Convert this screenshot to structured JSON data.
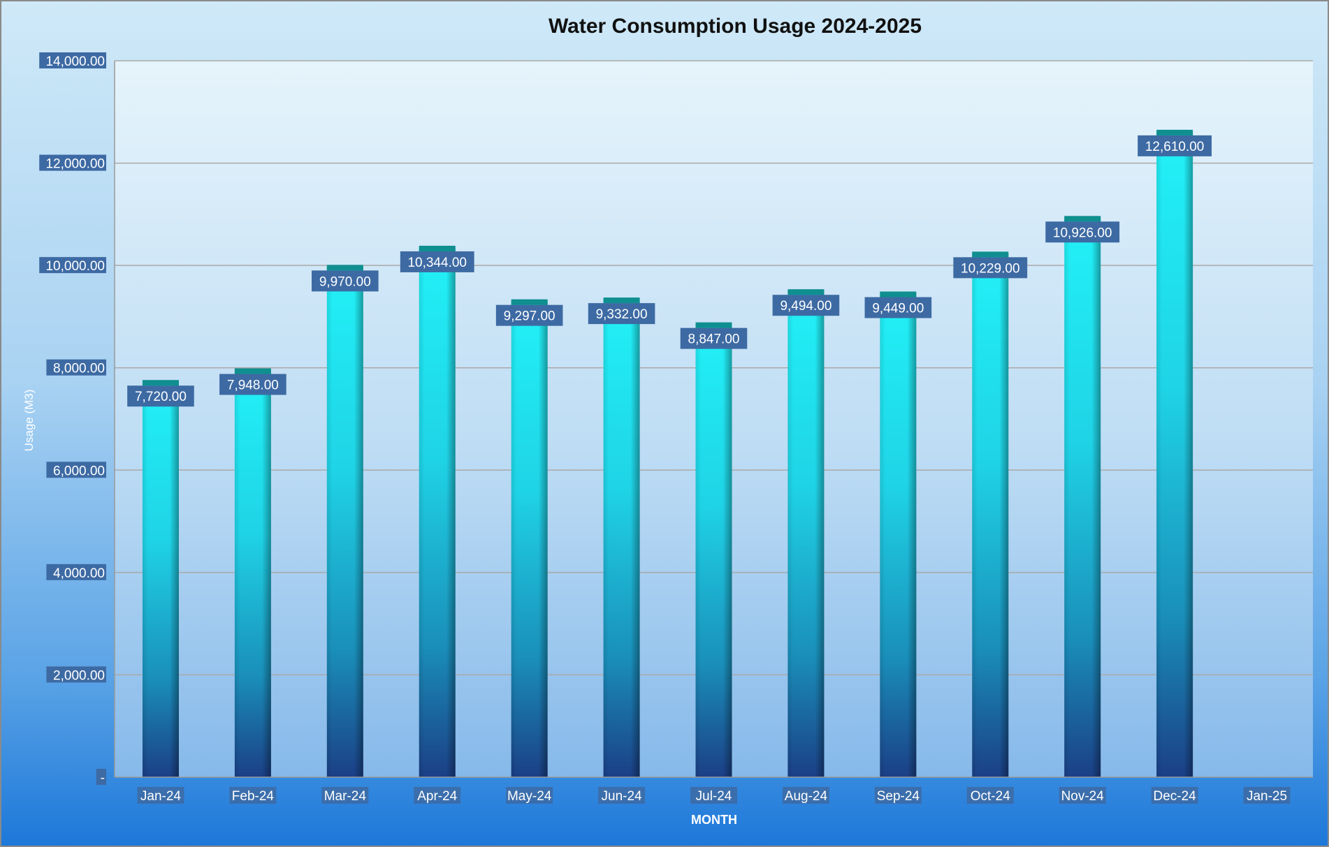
{
  "chart_data": {
    "type": "bar",
    "title": "Water Consumption Usage 2024-2025",
    "xlabel": "MONTH",
    "ylabel": "Usage (M3)",
    "categories": [
      "Jan-24",
      "Feb-24",
      "Mar-24",
      "Apr-24",
      "May-24",
      "Jun-24",
      "Jul-24",
      "Aug-24",
      "Sep-24",
      "Oct-24",
      "Nov-24",
      "Dec-24",
      "Jan-25"
    ],
    "values": [
      7720,
      7948,
      9970,
      10344,
      9297,
      9332,
      8847,
      9494,
      9449,
      10229,
      10926,
      12610,
      null
    ],
    "data_labels": [
      "7,720.00",
      "7,948.00",
      "9,970.00",
      "10,344.00",
      "9,297.00",
      "9,332.00",
      "8,847.00",
      "9,494.00",
      "9,449.00",
      "10,229.00",
      "10,926.00",
      "12,610.00",
      ""
    ],
    "ylim": [
      0,
      14000
    ],
    "y_ticks": [
      0,
      2000,
      4000,
      6000,
      8000,
      10000,
      12000,
      14000
    ],
    "y_tick_labels": [
      "-",
      "2,000.00",
      "4,000.00",
      "6,000.00",
      "8,000.00",
      "10,000.00",
      "12,000.00",
      "14,000.00"
    ],
    "grid": true,
    "legend": "none",
    "colors": {
      "bar_top": "#22eef5",
      "bar_mid": "#1aa7c7",
      "bar_bottom": "#1b3f86",
      "bar_cap": "#0f8f8f",
      "label_box": "#3d6aa3",
      "gridline": "#a9a9a9",
      "plot_background_top": "#e4f3fb",
      "plot_background_bottom": "#87b9ea",
      "outer_background_top": "#cfe9f8",
      "outer_background_bottom": "#1d78d9"
    }
  }
}
